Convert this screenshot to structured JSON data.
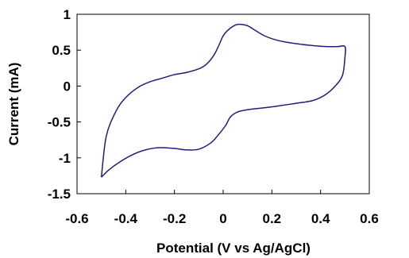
{
  "chart_data": {
    "type": "line",
    "title": "",
    "xlabel": "Potential (V vs Ag/AgCl)",
    "ylabel": "Current (mA)",
    "xlim": [
      -0.6,
      0.6
    ],
    "ylim": [
      -1.5,
      1.0
    ],
    "x_ticks": [
      "-0.6",
      "-0.4",
      "-0.2",
      "0",
      "0.2",
      "0.4",
      "0.6"
    ],
    "y_ticks": [
      "1",
      "0.5",
      "0",
      "-0.5",
      "-1",
      "-1.5"
    ],
    "grid": false,
    "legend": "none",
    "series": [
      {
        "color": "#1f1f7a",
        "x": [
          -0.5,
          -0.48,
          -0.44,
          -0.4,
          -0.35,
          -0.3,
          -0.25,
          -0.2,
          -0.15,
          -0.1,
          -0.07,
          -0.04,
          -0.02,
          0.0,
          0.02,
          0.05,
          0.07,
          0.1,
          0.13,
          0.17,
          0.22,
          0.28,
          0.35,
          0.42,
          0.47,
          0.5,
          0.5,
          0.49,
          0.46,
          0.42,
          0.37,
          0.3,
          0.22,
          0.15,
          0.1,
          0.06,
          0.03,
          0.01,
          -0.02,
          -0.05,
          -0.1,
          -0.15,
          -0.2,
          -0.27,
          -0.33,
          -0.38,
          -0.43,
          -0.47,
          -0.5
        ],
        "y": [
          -1.27,
          -0.7,
          -0.35,
          -0.16,
          -0.02,
          0.06,
          0.11,
          0.16,
          0.19,
          0.24,
          0.3,
          0.42,
          0.55,
          0.7,
          0.78,
          0.85,
          0.86,
          0.84,
          0.78,
          0.7,
          0.64,
          0.6,
          0.57,
          0.55,
          0.55,
          0.55,
          0.4,
          0.15,
          0.0,
          -0.12,
          -0.2,
          -0.24,
          -0.28,
          -0.31,
          -0.33,
          -0.36,
          -0.43,
          -0.55,
          -0.68,
          -0.79,
          -0.88,
          -0.89,
          -0.87,
          -0.86,
          -0.9,
          -0.97,
          -1.07,
          -1.17,
          -1.27
        ]
      }
    ]
  }
}
